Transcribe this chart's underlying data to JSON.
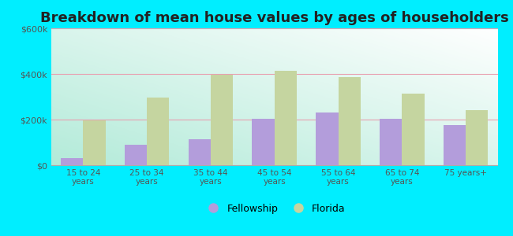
{
  "title": "Breakdown of mean house values by ages of householders",
  "categories": [
    "15 to 24\nyears",
    "25 to 34\nyears",
    "35 to 44\nyears",
    "45 to 54\nyears",
    "55 to 64\nyears",
    "65 to 74\nyears",
    "75 years+"
  ],
  "fellowship_values": [
    30000,
    90000,
    115000,
    205000,
    230000,
    205000,
    175000
  ],
  "florida_values": [
    195000,
    295000,
    395000,
    415000,
    385000,
    315000,
    240000
  ],
  "fellowship_color": "#b39ddb",
  "florida_color": "#c5d5a0",
  "bg_color_bottom_left": "#b2dfdb",
  "bg_color_top_right": "#ffffff",
  "ylim": [
    0,
    600000
  ],
  "yticks": [
    0,
    200000,
    400000,
    600000
  ],
  "ytick_labels": [
    "$0",
    "$200k",
    "$400k",
    "$600k"
  ],
  "grid_color": "#ddbbcc",
  "legend_fellowship": "Fellowship",
  "legend_florida": "Florida",
  "title_fontsize": 13,
  "bar_width": 0.35,
  "outer_bg": "#00eeff"
}
